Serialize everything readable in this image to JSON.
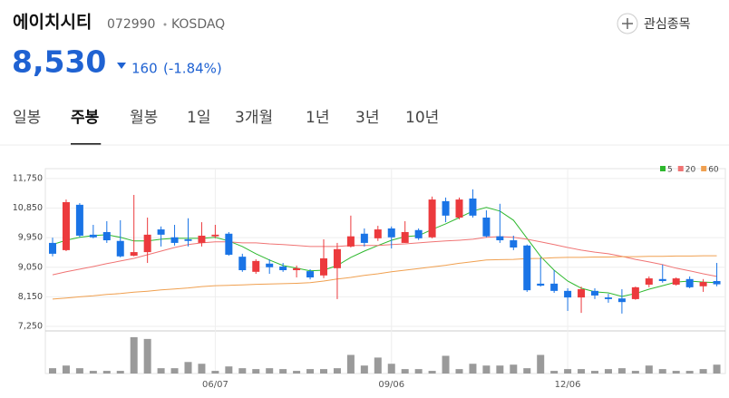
{
  "header": {
    "name": "에이치시티",
    "code": "072990",
    "market": "KOSDAQ",
    "watch": "관심종목",
    "price": "8,530",
    "change": "160",
    "change_pct": "(-1.84%)"
  },
  "tabs": [
    "일봉",
    "주봉",
    "월봉",
    "1일",
    "3개월",
    "1년",
    "3년",
    "10년"
  ],
  "selected_tab": 1,
  "chart_data": {
    "type": "candlestick",
    "categories": [
      null,
      null,
      null,
      null,
      null,
      null,
      null,
      null,
      null,
      null,
      null,
      null,
      "06/07",
      null,
      null,
      null,
      null,
      null,
      null,
      null,
      null,
      null,
      null,
      null,
      null,
      "09/06",
      null,
      null,
      null,
      null,
      null,
      null,
      null,
      null,
      null,
      null,
      null,
      null,
      "12/06",
      null,
      null,
      null,
      null,
      null,
      null,
      null,
      null,
      null,
      null,
      null
    ],
    "open": [
      9790,
      9570,
      10950,
      10040,
      10120,
      9850,
      9400,
      9510,
      10200,
      9960,
      9900,
      9790,
      9990,
      10070,
      9370,
      8910,
      9160,
      9070,
      8960,
      8930,
      8800,
      9020,
      9680,
      10070,
      9930,
      10230,
      9790,
      10180,
      9960,
      11060,
      10560,
      11140,
      10560,
      9990,
      9870,
      9710,
      8550,
      8550,
      8330,
      8130,
      8330,
      8130,
      8100,
      8080,
      8520,
      8690,
      8520,
      8690,
      8470,
      8630
    ],
    "high": [
      9950,
      11110,
      11000,
      10340,
      10450,
      10480,
      11250,
      10560,
      10290,
      10340,
      10540,
      10420,
      10340,
      10120,
      9460,
      9290,
      9290,
      9180,
      9100,
      8990,
      9900,
      9790,
      10620,
      10230,
      10310,
      10290,
      10450,
      10230,
      11200,
      11170,
      11170,
      11420,
      10780,
      10980,
      10010,
      9740,
      9350,
      8960,
      8410,
      8460,
      8410,
      8240,
      8380,
      8460,
      8770,
      9130,
      8740,
      8770,
      8690,
      9180
    ],
    "low": [
      9380,
      9540,
      9960,
      9930,
      9790,
      9350,
      9380,
      9180,
      9680,
      9710,
      9680,
      9680,
      9930,
      9400,
      8910,
      8850,
      8850,
      8910,
      8740,
      8680,
      8720,
      8080,
      9650,
      9680,
      9850,
      9620,
      9790,
      9880,
      9930,
      10420,
      10510,
      10560,
      9960,
      9790,
      9570,
      8300,
      8460,
      8270,
      7720,
      7660,
      8080,
      7970,
      7640,
      8060,
      8440,
      8580,
      8490,
      8410,
      8300,
      8470
    ],
    "close": [
      9460,
      11030,
      10010,
      9960,
      9870,
      9380,
      9510,
      10040,
      10040,
      9790,
      9850,
      10010,
      10040,
      9430,
      8960,
      9240,
      9050,
      8960,
      9020,
      8740,
      9320,
      9600,
      9990,
      9790,
      10200,
      9960,
      10120,
      9930,
      11110,
      10620,
      11110,
      10620,
      9990,
      9870,
      9650,
      8350,
      8490,
      8330,
      8130,
      8380,
      8190,
      8080,
      7990,
      8440,
      8710,
      8630,
      8710,
      8440,
      8600,
      8530
    ],
    "up_color": "#ec3a3d",
    "down_color": "#1a74e6",
    "series": [
      {
        "name": "5",
        "color": "#2eb82e",
        "values": [
          9740,
          9870,
          9960,
          10010,
          10040,
          9960,
          9850,
          9850,
          9900,
          9930,
          9930,
          9930,
          9960,
          9850,
          9680,
          9460,
          9270,
          9100,
          9020,
          8940,
          8960,
          9100,
          9350,
          9540,
          9710,
          9870,
          9980,
          10010,
          10200,
          10370,
          10560,
          10760,
          10870,
          10760,
          10480,
          9930,
          9380,
          8960,
          8630,
          8410,
          8300,
          8270,
          8160,
          8250,
          8380,
          8490,
          8600,
          8630,
          8600,
          8580
        ]
      },
      {
        "name": "20",
        "color": "#f07474",
        "values": [
          8820,
          8910,
          8990,
          9070,
          9160,
          9240,
          9320,
          9430,
          9540,
          9650,
          9740,
          9790,
          9820,
          9820,
          9790,
          9790,
          9760,
          9740,
          9710,
          9680,
          9680,
          9680,
          9710,
          9710,
          9710,
          9740,
          9760,
          9790,
          9820,
          9850,
          9870,
          9900,
          9960,
          9980,
          9960,
          9900,
          9820,
          9740,
          9650,
          9570,
          9510,
          9460,
          9380,
          9290,
          9210,
          9130,
          9020,
          8940,
          8850,
          8770
        ]
      },
      {
        "name": "60",
        "color": "#f0a050",
        "values": [
          8080,
          8110,
          8150,
          8180,
          8220,
          8250,
          8290,
          8320,
          8360,
          8390,
          8420,
          8460,
          8490,
          8500,
          8510,
          8530,
          8540,
          8550,
          8560,
          8580,
          8630,
          8690,
          8740,
          8800,
          8850,
          8910,
          8960,
          9010,
          9060,
          9110,
          9170,
          9220,
          9270,
          9280,
          9290,
          9310,
          9320,
          9340,
          9350,
          9350,
          9360,
          9360,
          9370,
          9370,
          9380,
          9380,
          9390,
          9390,
          9400,
          9400
        ]
      }
    ],
    "volume": [
      6,
      9,
      6,
      3,
      3,
      3,
      41,
      39,
      6,
      6,
      13,
      11,
      3,
      8,
      6,
      5,
      6,
      5,
      3,
      5,
      5,
      6,
      21,
      9,
      18,
      11,
      5,
      5,
      3,
      20,
      5,
      11,
      9,
      9,
      10,
      6,
      21,
      3,
      5,
      5,
      3,
      5,
      6,
      3,
      9,
      5,
      3,
      3,
      5,
      10
    ],
    "volume_color": "#9a9a9a",
    "vlim": [
      0,
      45
    ],
    "ylim": [
      7250,
      12050
    ],
    "yticks": [
      {
        "value": 7250,
        "label": "7,250"
      },
      {
        "value": 8150,
        "label": "8,150"
      },
      {
        "value": 9050,
        "label": "9,050"
      },
      {
        "value": 9950,
        "label": "9,950"
      },
      {
        "value": 10850,
        "label": "10,850"
      },
      {
        "value": 11750,
        "label": "11,750"
      }
    ],
    "grid": true
  }
}
